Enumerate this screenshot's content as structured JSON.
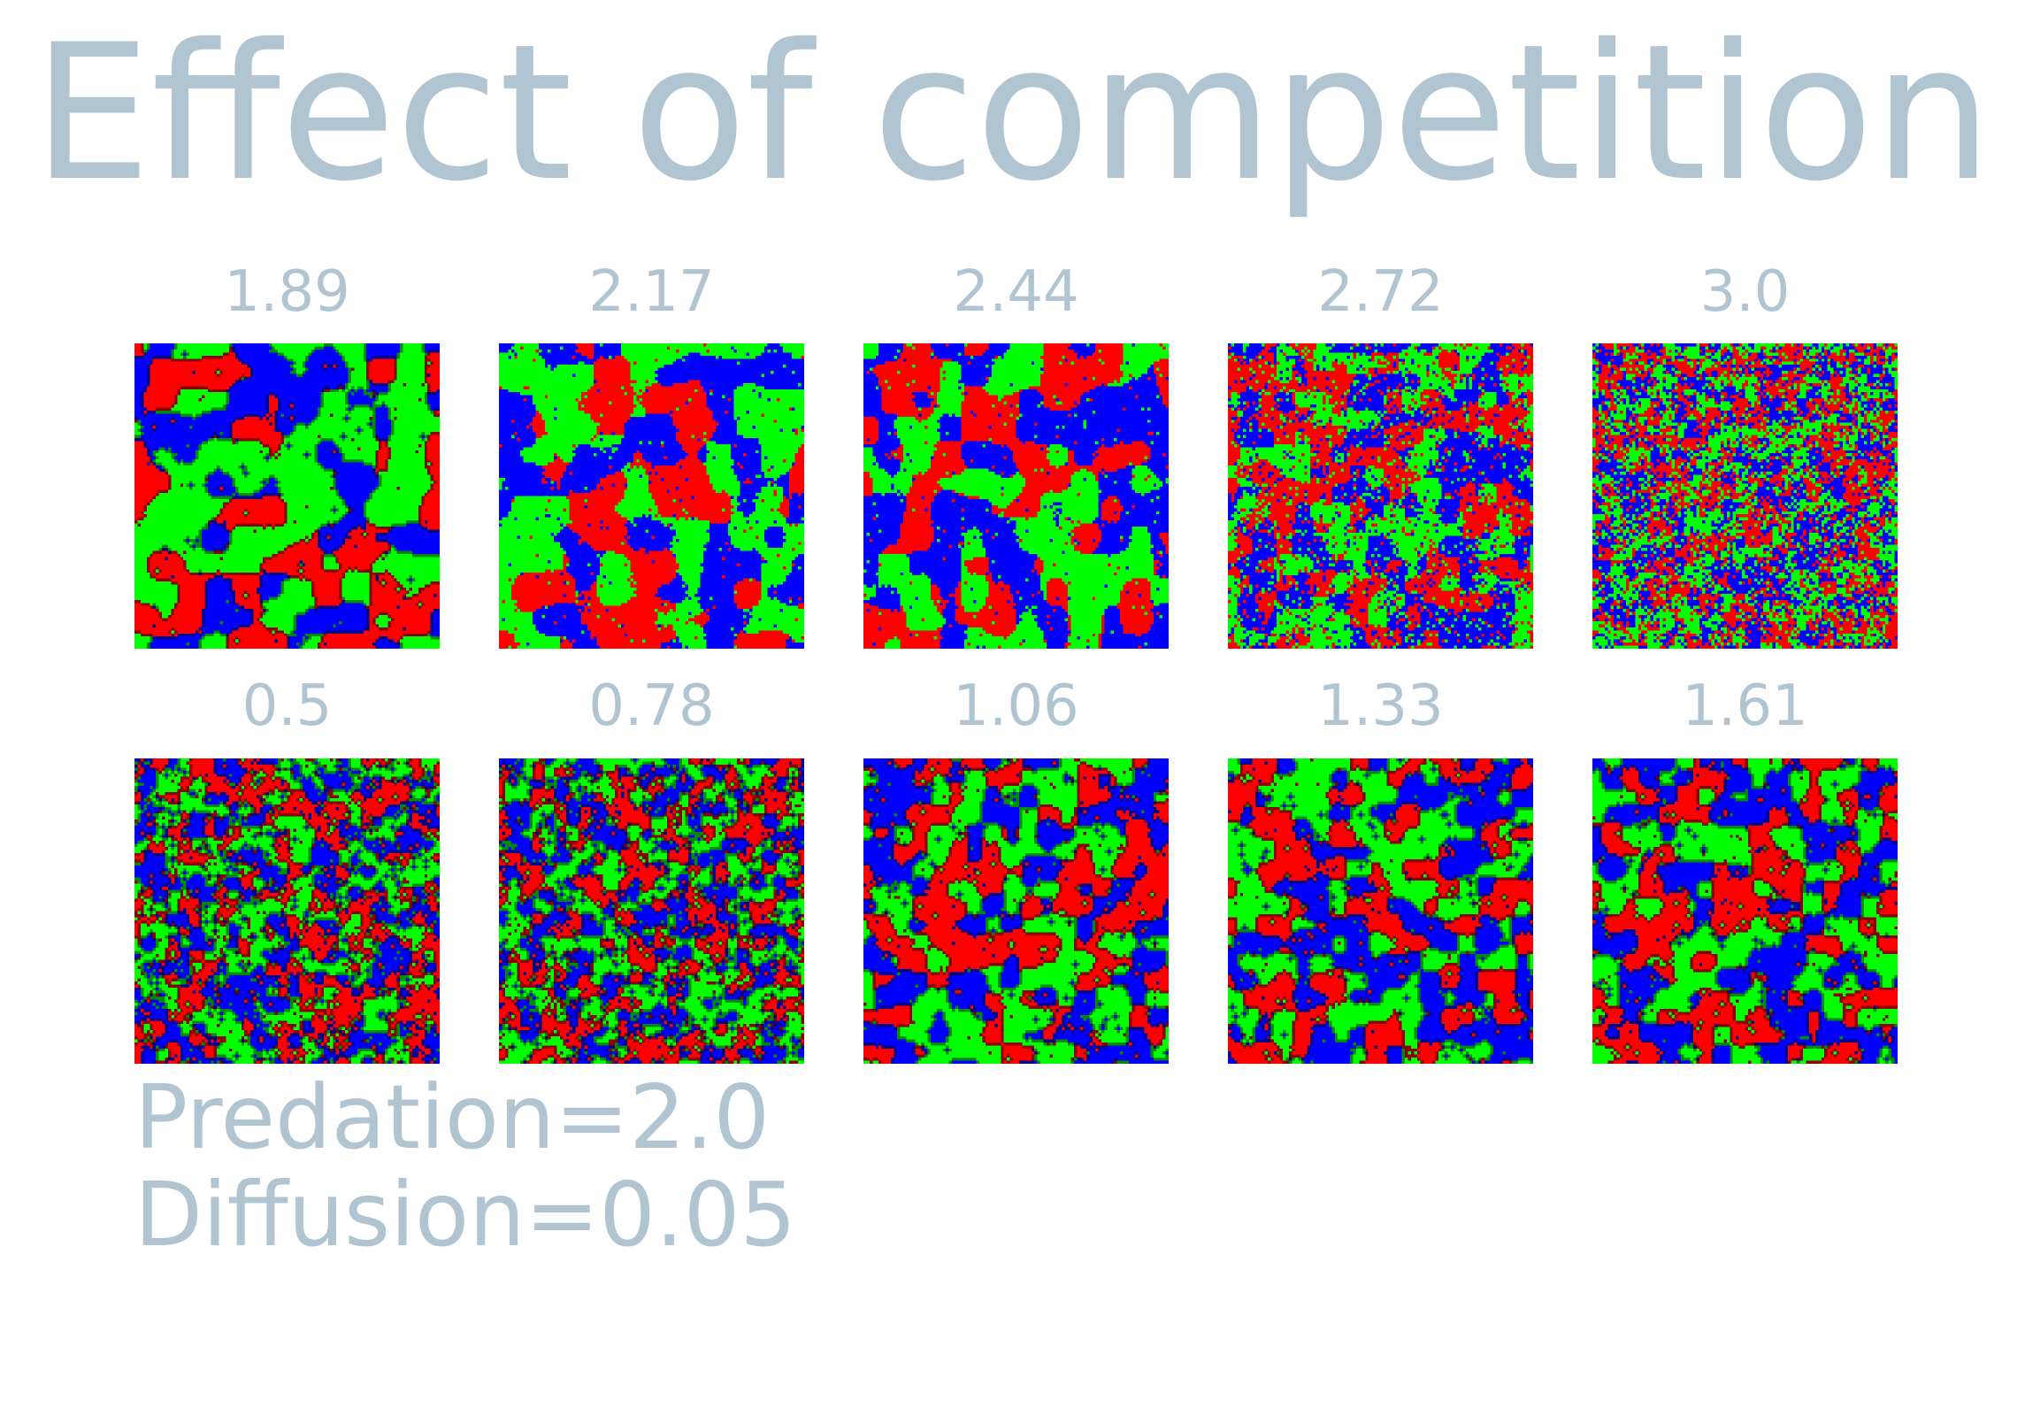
{
  "title": "Effect of competition",
  "text_color": "#b1c4d1",
  "species_colors": [
    "#ff0000",
    "#00ff00",
    "#0000ff"
  ],
  "panels": [
    {
      "label": "1.89",
      "pattern": "large"
    },
    {
      "label": "2.17",
      "pattern": "blobs"
    },
    {
      "label": "2.44",
      "pattern": "blobs"
    },
    {
      "label": "2.72",
      "pattern": "speckled"
    },
    {
      "label": "3.0",
      "pattern": "noise"
    },
    {
      "label": "0.5",
      "pattern": "fine-outlined"
    },
    {
      "label": "0.78",
      "pattern": "fine-outlined"
    },
    {
      "label": "1.06",
      "pattern": "spiral-outlined"
    },
    {
      "label": "1.33",
      "pattern": "spiral-outlined"
    },
    {
      "label": "1.61",
      "pattern": "spiral-outlined"
    }
  ],
  "parameters": {
    "predation": "Predation=2.0",
    "diffusion": "Diffusion=0.05"
  }
}
